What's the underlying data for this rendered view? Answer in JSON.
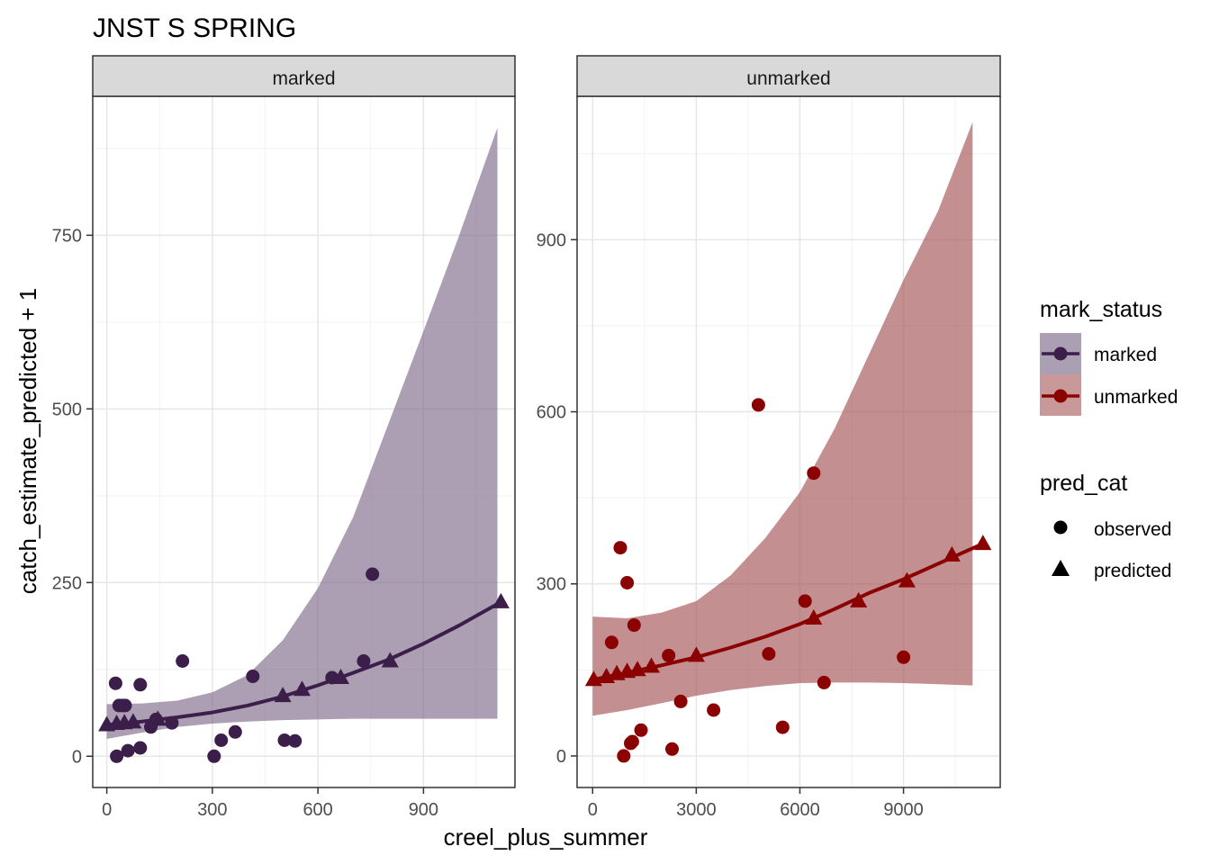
{
  "chart_data": {
    "type": "scatter",
    "title": "JNST S SPRING",
    "xlabel": "creel_plus_summer",
    "ylabel": "catch_estimate_predicted + 1",
    "grid": true,
    "legend_position": "right",
    "legends": [
      {
        "title": "mark_status",
        "entries": [
          {
            "label": "marked",
            "color": "#3b1f4a",
            "fill": "#ab9fb3"
          },
          {
            "label": "unmarked",
            "color": "#8b0000",
            "fill": "#c99899"
          }
        ]
      },
      {
        "title": "pred_cat",
        "entries": [
          {
            "label": "observed",
            "shape": "circle"
          },
          {
            "label": "predicted",
            "shape": "triangle"
          }
        ]
      }
    ],
    "facets": [
      {
        "strip": "marked",
        "color": "#3b1f4a",
        "ribbon_color": "#7a6485",
        "xlim": [
          -40,
          1160
        ],
        "ylim": [
          -45,
          950
        ],
        "xticks": [
          0,
          300,
          600,
          900
        ],
        "yticks": [
          0,
          250,
          500,
          750
        ],
        "observed": [
          [
            25,
            105
          ],
          [
            28,
            0
          ],
          [
            35,
            73
          ],
          [
            45,
            73
          ],
          [
            52,
            73
          ],
          [
            60,
            8
          ],
          [
            95,
            103
          ],
          [
            95,
            12
          ],
          [
            125,
            42
          ],
          [
            140,
            53
          ],
          [
            185,
            48
          ],
          [
            215,
            137
          ],
          [
            305,
            0
          ],
          [
            325,
            23
          ],
          [
            365,
            35
          ],
          [
            415,
            115
          ],
          [
            505,
            23
          ],
          [
            535,
            22
          ],
          [
            640,
            113
          ],
          [
            730,
            137
          ],
          [
            755,
            262
          ]
        ],
        "predicted": [
          [
            0,
            45
          ],
          [
            28,
            47
          ],
          [
            50,
            48
          ],
          [
            75,
            49
          ],
          [
            145,
            53
          ],
          [
            500,
            87
          ],
          [
            555,
            96
          ],
          [
            665,
            113
          ],
          [
            805,
            137
          ],
          [
            1120,
            222
          ]
        ],
        "line": [
          [
            0,
            45
          ],
          [
            100,
            50
          ],
          [
            200,
            56
          ],
          [
            300,
            63
          ],
          [
            400,
            73
          ],
          [
            500,
            86
          ],
          [
            600,
            102
          ],
          [
            700,
            120
          ],
          [
            800,
            139
          ],
          [
            900,
            162
          ],
          [
            1000,
            188
          ],
          [
            1120,
            222
          ]
        ],
        "ribbon_upper": [
          [
            0,
            75
          ],
          [
            100,
            76
          ],
          [
            200,
            80
          ],
          [
            300,
            92
          ],
          [
            400,
            117
          ],
          [
            500,
            167
          ],
          [
            600,
            242
          ],
          [
            700,
            344
          ],
          [
            800,
            478
          ],
          [
            900,
            612
          ],
          [
            1000,
            748
          ],
          [
            1110,
            905
          ]
        ],
        "ribbon_lower": [
          [
            0,
            25
          ],
          [
            100,
            34
          ],
          [
            200,
            42
          ],
          [
            300,
            47
          ],
          [
            400,
            50
          ],
          [
            500,
            52
          ],
          [
            600,
            53
          ],
          [
            700,
            54
          ],
          [
            800,
            54
          ],
          [
            900,
            54
          ],
          [
            1000,
            54
          ],
          [
            1110,
            54
          ]
        ]
      },
      {
        "strip": "unmarked",
        "color": "#8b0000",
        "ribbon_color": "#a04a4d",
        "xlim": [
          -450,
          11800
        ],
        "ylim": [
          -55,
          1150
        ],
        "xticks": [
          0,
          3000,
          6000,
          9000
        ],
        "yticks": [
          0,
          300,
          600,
          900
        ],
        "observed": [
          [
            550,
            198
          ],
          [
            800,
            363
          ],
          [
            900,
            0
          ],
          [
            1000,
            302
          ],
          [
            1100,
            22
          ],
          [
            1150,
            25
          ],
          [
            1200,
            228
          ],
          [
            1400,
            45
          ],
          [
            2200,
            175
          ],
          [
            2300,
            12
          ],
          [
            2550,
            95
          ],
          [
            3500,
            80
          ],
          [
            4800,
            612
          ],
          [
            5100,
            178
          ],
          [
            5500,
            50
          ],
          [
            6150,
            270
          ],
          [
            6400,
            493
          ],
          [
            6700,
            128
          ],
          [
            9000,
            172
          ]
        ],
        "predicted": [
          [
            30,
            133
          ],
          [
            400,
            138
          ],
          [
            700,
            143
          ],
          [
            1000,
            147
          ],
          [
            1300,
            150
          ],
          [
            1700,
            156
          ],
          [
            3000,
            175
          ],
          [
            6400,
            240
          ],
          [
            7700,
            270
          ],
          [
            9100,
            305
          ],
          [
            10400,
            350
          ],
          [
            11300,
            370
          ]
        ],
        "line": [
          [
            0,
            133
          ],
          [
            1000,
            145
          ],
          [
            2000,
            158
          ],
          [
            3000,
            172
          ],
          [
            4000,
            189
          ],
          [
            5000,
            208
          ],
          [
            6000,
            230
          ],
          [
            7000,
            256
          ],
          [
            8000,
            284
          ],
          [
            9000,
            308
          ],
          [
            10000,
            335
          ],
          [
            11300,
            370
          ]
        ],
        "ribbon_upper": [
          [
            0,
            243
          ],
          [
            1000,
            240
          ],
          [
            2000,
            250
          ],
          [
            3000,
            270
          ],
          [
            4000,
            315
          ],
          [
            5000,
            380
          ],
          [
            6000,
            460
          ],
          [
            7000,
            570
          ],
          [
            8000,
            700
          ],
          [
            9000,
            830
          ],
          [
            10000,
            950
          ],
          [
            11000,
            1105
          ]
        ],
        "ribbon_lower": [
          [
            0,
            70
          ],
          [
            1000,
            80
          ],
          [
            2000,
            92
          ],
          [
            3000,
            105
          ],
          [
            4000,
            115
          ],
          [
            5000,
            122
          ],
          [
            6000,
            127
          ],
          [
            7000,
            128
          ],
          [
            8000,
            128
          ],
          [
            9000,
            127
          ],
          [
            10000,
            125
          ],
          [
            11000,
            123
          ]
        ]
      }
    ]
  }
}
